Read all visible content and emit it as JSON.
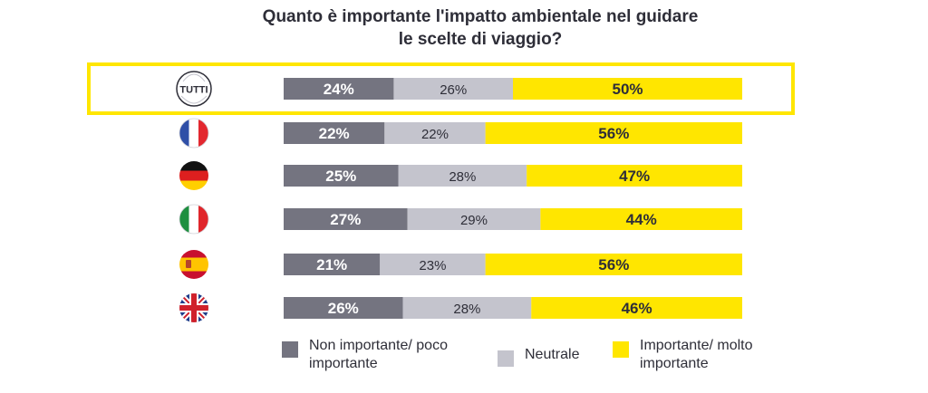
{
  "chart_data": {
    "type": "bar",
    "stacked": true,
    "orientation": "horizontal",
    "title_lines": [
      "Quanto è importante l'impatto ambientale nel guidare",
      "le scelte di viaggio?"
    ],
    "categories": [
      "TUTTI",
      "France",
      "Germany",
      "Italy",
      "Spain",
      "United Kingdom"
    ],
    "category_labels": [
      "TUTTI",
      "",
      "",
      "",
      "",
      ""
    ],
    "highlight_category": "TUTTI",
    "series": [
      {
        "name": "Non importante/ poco importante",
        "color": "#747480",
        "values": [
          24,
          22,
          25,
          27,
          21,
          26
        ]
      },
      {
        "name": "Neutrale",
        "color": "#c4c4cd",
        "values": [
          26,
          22,
          28,
          29,
          23,
          28
        ]
      },
      {
        "name": "Importante/ molto importante",
        "color": "#ffe600",
        "values": [
          50,
          56,
          47,
          44,
          56,
          46
        ]
      }
    ],
    "value_suffix": "%",
    "xlim": [
      0,
      100
    ],
    "legend_position": "bottom",
    "highlight_color": "#ffe600",
    "label_colors": [
      "#ffffff",
      "#2e2e38",
      "#2e2e38"
    ]
  },
  "legend": {
    "items": [
      {
        "label": "Non importante/ poco importante",
        "color": "#747480"
      },
      {
        "label": "Neutrale",
        "color": "#c4c4cd"
      },
      {
        "label": "Importante/ molto importante",
        "color": "#ffe600"
      }
    ]
  },
  "flags": [
    {
      "icon": "tutti-badge-icon",
      "label": "TUTTI"
    },
    {
      "icon": "france-flag-icon"
    },
    {
      "icon": "germany-flag-icon"
    },
    {
      "icon": "italy-flag-icon"
    },
    {
      "icon": "spain-flag-icon"
    },
    {
      "icon": "uk-flag-icon"
    }
  ]
}
